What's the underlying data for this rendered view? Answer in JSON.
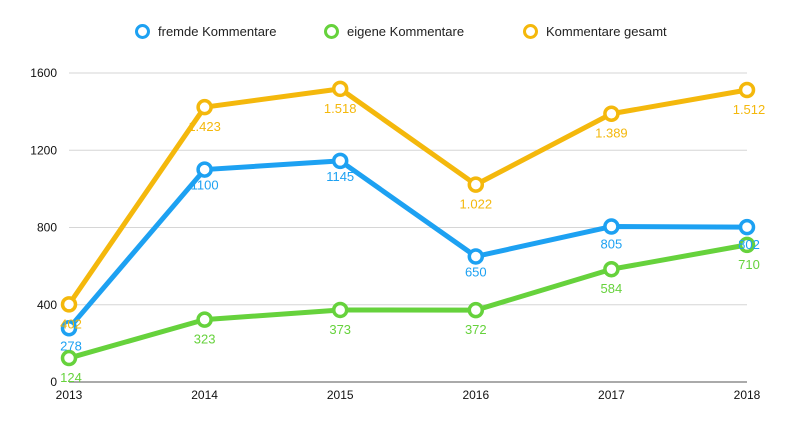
{
  "chart_data": {
    "type": "line",
    "title": "",
    "xlabel": "",
    "ylabel": "",
    "categories": [
      "2013",
      "2014",
      "2015",
      "2016",
      "2017",
      "2018"
    ],
    "ylim": [
      0,
      1600
    ],
    "yticks": [
      0,
      400,
      800,
      1200,
      1600
    ],
    "ytick_labels": [
      "0",
      "400",
      "800",
      "1200",
      "1600"
    ],
    "grid": true,
    "legend_position": "top",
    "series": [
      {
        "name": "fremde Kommentare",
        "color": "#1da1f2",
        "values": [
          278,
          1100,
          1145,
          650,
          805,
          802
        ],
        "labels": [
          "278",
          "1100",
          "1145",
          "650",
          "805",
          "802"
        ]
      },
      {
        "name": "eigene Kommentare",
        "color": "#66d23c",
        "values": [
          124,
          323,
          373,
          372,
          584,
          710
        ],
        "labels": [
          "124",
          "323",
          "373",
          "372",
          "584",
          "710"
        ]
      },
      {
        "name": "Kommentare gesamt",
        "color": "#f4b80c",
        "values": [
          402,
          1423,
          1518,
          1022,
          1389,
          1512
        ],
        "labels": [
          "402",
          "1.423",
          "1.518",
          "1.022",
          "1.389",
          "1.512"
        ]
      }
    ]
  }
}
